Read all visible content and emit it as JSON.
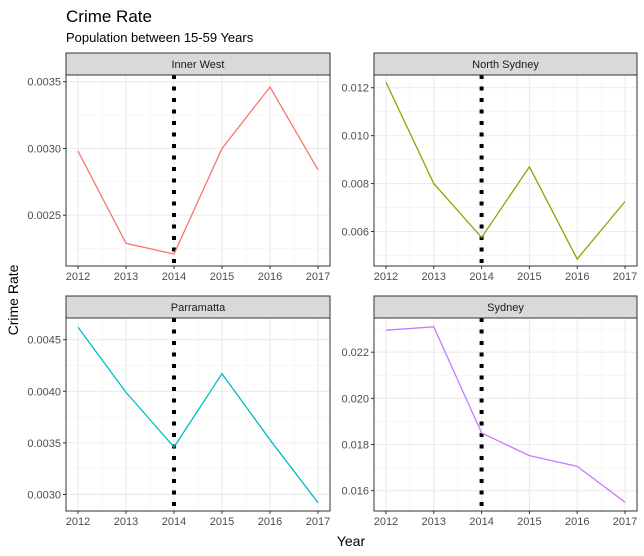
{
  "chart_data": {
    "type": "line",
    "title": "Crime Rate",
    "subtitle": "Population between 15-59 Years",
    "xlabel": "Year",
    "ylabel": "Crime Rate",
    "grid": true,
    "reference_line": {
      "x": 2014,
      "style": "dotted",
      "color": "#000000"
    },
    "x": [
      2012,
      2013,
      2014,
      2015,
      2016,
      2017
    ],
    "panels": [
      {
        "name": "Inner West",
        "color": "#F8766D",
        "values": [
          0.00298,
          0.00229,
          0.00221,
          0.003,
          0.00346,
          0.00284
        ],
        "ylim": [
          0.00212,
          0.00355
        ],
        "yticks": [
          0.0025,
          0.003,
          0.0035
        ],
        "ytick_labels": [
          "0.0025",
          "0.0030",
          "0.0035"
        ]
      },
      {
        "name": "North Sydney",
        "color": "#7CAE00",
        "values": [
          0.01222,
          0.008,
          0.00575,
          0.0087,
          0.00485,
          0.00725
        ],
        "ylim": [
          0.00456,
          0.01253
        ],
        "yticks": [
          0.006,
          0.008,
          0.01,
          0.012
        ],
        "ytick_labels": [
          "0.006",
          "0.008",
          "0.010",
          "0.012"
        ]
      },
      {
        "name": "Parramatta",
        "color": "#00BFC4",
        "values": [
          0.00462,
          0.00399,
          0.00346,
          0.00417,
          0.00353,
          0.00292
        ],
        "ylim": [
          0.00284,
          0.00471
        ],
        "yticks": [
          0.003,
          0.0035,
          0.004,
          0.0045
        ],
        "ytick_labels": [
          "0.0030",
          "0.0035",
          "0.0040",
          "0.0045"
        ]
      },
      {
        "name": "Sydney",
        "color": "#C77CFF",
        "values": [
          0.02295,
          0.0231,
          0.0185,
          0.01752,
          0.01705,
          0.0155
        ],
        "ylim": [
          0.01512,
          0.02348
        ],
        "yticks": [
          0.016,
          0.018,
          0.02,
          0.022
        ],
        "ytick_labels": [
          "0.016",
          "0.018",
          "0.020",
          "0.022"
        ]
      }
    ]
  }
}
